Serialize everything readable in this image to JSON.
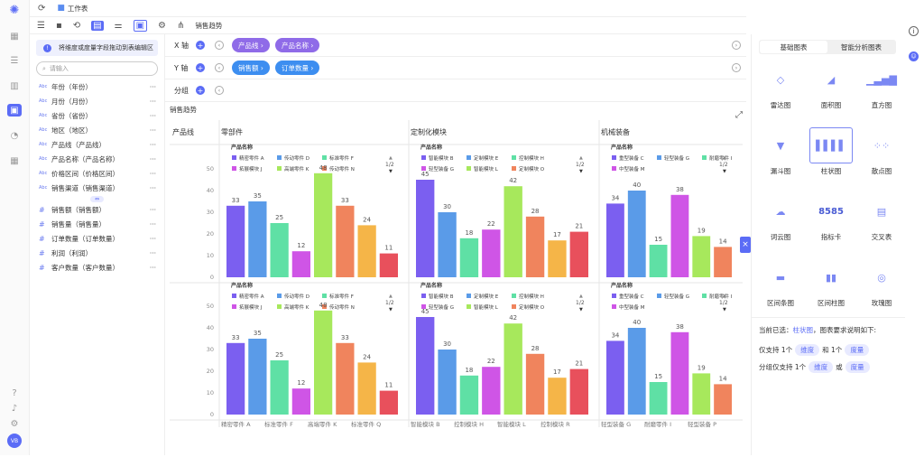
{
  "app": {
    "breadcrumb": "工作表",
    "chart_title_tab": "销售趋势"
  },
  "fields": {
    "tip": "将维度或度量字段拖动到表编辑区",
    "search_placeholder": "请输入",
    "dimensions": [
      {
        "tag": "Abc",
        "label": "年份（年份）"
      },
      {
        "tag": "Abc",
        "label": "月份（月份）"
      },
      {
        "tag": "Abc",
        "label": "省份（省份）"
      },
      {
        "tag": "Abc",
        "label": "地区（地区）"
      },
      {
        "tag": "Abc",
        "label": "产品线（产品线）"
      },
      {
        "tag": "Abc",
        "label": "产品名称（产品名称）"
      },
      {
        "tag": "Abc",
        "label": "价格区间（价格区间）"
      },
      {
        "tag": "Abc",
        "label": "销售渠道（销售渠道）"
      }
    ],
    "measures": [
      {
        "tag": "#",
        "label": "销售额（销售额）"
      },
      {
        "tag": "#",
        "label": "销售量（销售量）"
      },
      {
        "tag": "#",
        "label": "订单数量（订单数量）"
      },
      {
        "tag": "#",
        "label": "利润（利润）"
      },
      {
        "tag": "#",
        "label": "客户数量（客户数量）"
      }
    ],
    "more": "···",
    "divider": "⇔"
  },
  "config": {
    "x_label": "X 轴",
    "y_label": "Y 轴",
    "group_label": "分组",
    "x_pills": [
      "产品线 ›",
      "产品名称 ›"
    ],
    "y_pills": [
      "销售额 ›",
      "订单数量 ›"
    ]
  },
  "chart": {
    "title": "销售趋势",
    "row_header": "产品线",
    "legend_title": "产品名称",
    "page_indicator": "1/2",
    "colors": [
      "#7b5ff0",
      "#5a9be8",
      "#5fe0a5",
      "#cf55e6",
      "#a7e85c",
      "#f0845d",
      "#f5b548",
      "#e8505c"
    ],
    "panels": [
      {
        "name": "零部件",
        "legend": [
          "精密零件 A",
          "传动零件 D",
          "标准零件 F",
          "拓展模块 J",
          "高端零件 K",
          "传动零件 N"
        ],
        "x_ticks": [
          "精密零件 A",
          "标准零件 F",
          "高端零件 K",
          "标准零件 Q"
        ]
      },
      {
        "name": "定制化模块",
        "legend": [
          "智能模块 B",
          "定制模块 E",
          "控制模块 H",
          "轻型装备 G",
          "智能模块 L",
          "定制模块 O"
        ],
        "x_ticks": [
          "智能模块 B",
          "控制模块 H",
          "智能模块 L",
          "控制模块 R"
        ]
      },
      {
        "name": "机械装备",
        "legend": [
          "重型装备 C",
          "轻型装备 G",
          "耐磨零件 I",
          "中型装备 M"
        ],
        "x_ticks": [
          "轻型装备 G",
          "耐磨零件 I",
          "轻型装备 P"
        ]
      }
    ]
  },
  "chart_data": {
    "type": "bar",
    "title": "销售趋势",
    "ylim": [
      0,
      50
    ],
    "yticks": [
      0,
      10,
      20,
      30,
      40,
      50
    ],
    "facets": [
      {
        "group": "零部件",
        "values": [
          33,
          35,
          25,
          12,
          48,
          33,
          24,
          11
        ],
        "labels": [
          "33",
          "35",
          "25",
          "12",
          "48",
          "33",
          "24",
          "11"
        ]
      },
      {
        "group": "定制化模块",
        "values": [
          45,
          30,
          18,
          22,
          42,
          28,
          17,
          21
        ],
        "labels": [
          "45",
          "30",
          "18",
          "22",
          "42",
          "28",
          "17",
          "21"
        ]
      },
      {
        "group": "机械装备",
        "values": [
          34,
          40,
          15,
          38,
          19,
          14
        ],
        "labels": [
          "34",
          "40",
          "15",
          "38",
          "19",
          "14"
        ]
      }
    ]
  },
  "right": {
    "tab_basic": "基础图表",
    "tab_smart": "智能分析图表",
    "types": [
      "雷达图",
      "面积图",
      "直方图",
      "漏斗图",
      "柱状图",
      "散点图",
      "词云图",
      "指标卡",
      "交叉表",
      "区间条图",
      "区间柱图",
      "玫瑰图"
    ],
    "kpi_value": "8585",
    "desc_prefix": "当前已选：",
    "desc_type": "柱状图",
    "desc_suffix": "，图表要求说明如下:",
    "req1_a": "仅支持 1个",
    "req1_b": "维度",
    "req1_c": "和 1个",
    "req1_d": "度量",
    "req2_a": "分组仅支持 1个",
    "req2_b": "维度",
    "req2_c": "或",
    "req2_d": "度量"
  },
  "user": {
    "avatar": "VB"
  }
}
